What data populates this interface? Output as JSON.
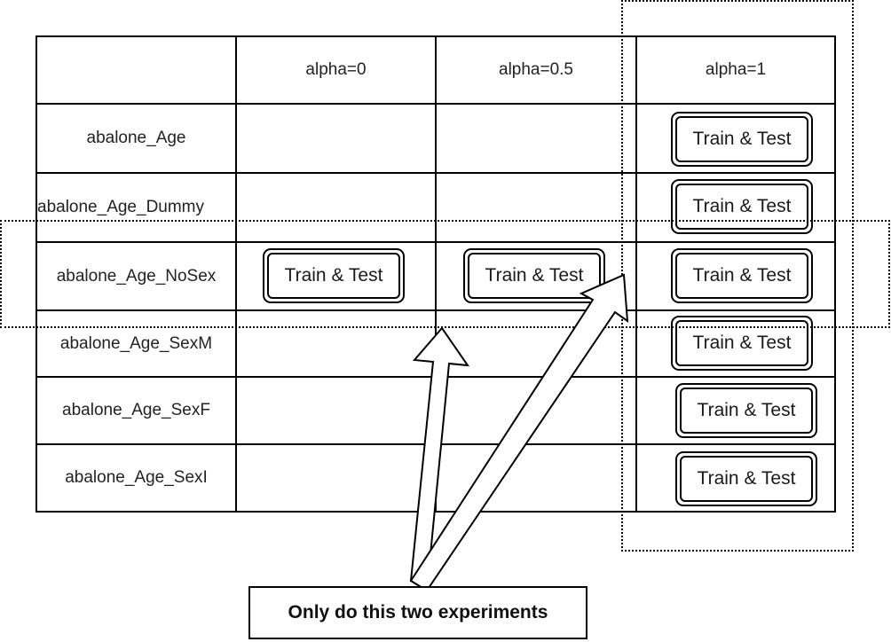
{
  "table": {
    "columns": [
      "alpha=0",
      "alpha=0.5",
      "alpha=1"
    ],
    "rows": [
      "abalone_Age",
      "abalone_Age_Dummy",
      "abalone_Age_NoSex",
      "abalone_Age_SexM",
      "abalone_Age_SexF",
      "abalone_Age_SexI"
    ]
  },
  "cell_button_label": "Train & Test",
  "note": "Only do this two experiments"
}
